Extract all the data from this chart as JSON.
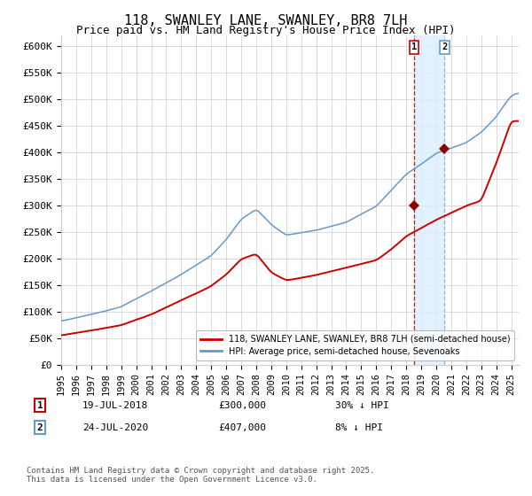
{
  "title": "118, SWANLEY LANE, SWANLEY, BR8 7LH",
  "subtitle": "Price paid vs. HM Land Registry's House Price Index (HPI)",
  "title_fontsize": 11,
  "subtitle_fontsize": 9,
  "ylabel_ticks": [
    "£0",
    "£50K",
    "£100K",
    "£150K",
    "£200K",
    "£250K",
    "£300K",
    "£350K",
    "£400K",
    "£450K",
    "£500K",
    "£550K",
    "£600K"
  ],
  "ytick_values": [
    0,
    50000,
    100000,
    150000,
    200000,
    250000,
    300000,
    350000,
    400000,
    450000,
    500000,
    550000,
    600000
  ],
  "ylim": [
    0,
    620000
  ],
  "xlim_start": 1995.0,
  "xlim_end": 2025.5,
  "hpi_color": "#6699cc",
  "price_color": "#cc0000",
  "marker_color": "#8B0000",
  "vline1_color": "#cc0000",
  "vline2_color": "#6699cc",
  "vspan_color": "#ddeeff",
  "background_color": "#ffffff",
  "grid_color": "#cccccc",
  "legend_label_price": "118, SWANLEY LANE, SWANLEY, BR8 7LH (semi-detached house)",
  "legend_label_hpi": "HPI: Average price, semi-detached house, Sevenoaks",
  "sale1_date_x": 2018.54,
  "sale1_price": 300000,
  "sale1_label": "1",
  "sale2_date_x": 2020.56,
  "sale2_price": 407000,
  "sale2_label": "2",
  "annotation1_date": "19-JUL-2018",
  "annotation1_price": "£300,000",
  "annotation1_pct": "30% ↓ HPI",
  "annotation2_date": "24-JUL-2020",
  "annotation2_price": "£407,000",
  "annotation2_pct": "8% ↓ HPI",
  "footnote": "Contains HM Land Registry data © Crown copyright and database right 2025.\nThis data is licensed under the Open Government Licence v3.0.",
  "xtick_years": [
    1995,
    1996,
    1997,
    1998,
    1999,
    2000,
    2001,
    2002,
    2003,
    2004,
    2005,
    2006,
    2007,
    2008,
    2009,
    2010,
    2011,
    2012,
    2013,
    2014,
    2015,
    2016,
    2017,
    2018,
    2019,
    2020,
    2021,
    2022,
    2023,
    2024,
    2025
  ]
}
